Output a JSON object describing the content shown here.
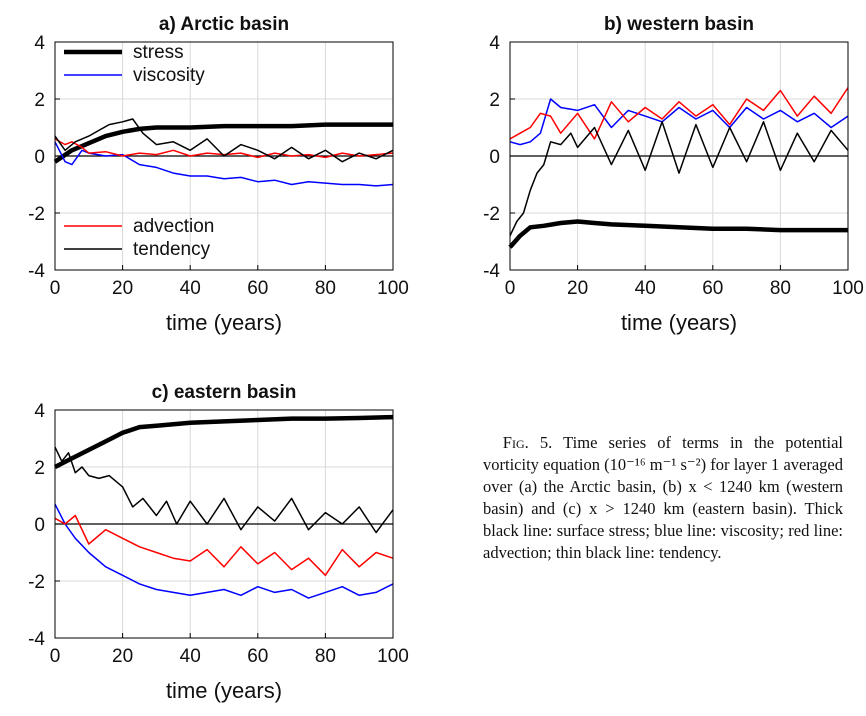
{
  "colors": {
    "stress": "#000000",
    "viscosity": "#0000ff",
    "advection": "#ff0000",
    "tendency": "#000000",
    "grid": "#d9d9d9"
  },
  "caption": {
    "fig_label": "Fig. 5.",
    "text": "Time series of terms in the potential vorticity equation (10⁻¹⁶ m⁻¹ s⁻²) for layer 1 averaged over (a) the Arctic basin, (b) x < 1240 km (western basin) and (c) x > 1240 km (eastern basin). Thick black line: surface stress; blue line: viscosity; red line: advection; thin black line: tendency."
  },
  "chart_data": [
    {
      "type": "line",
      "title": "a) Arctic basin",
      "xlabel": "time (years)",
      "ylabel": "",
      "xlim": [
        0,
        100
      ],
      "ylim": [
        -4,
        4
      ],
      "xticks": [
        "0",
        "20",
        "40",
        "60",
        "80",
        "100"
      ],
      "yticks": [
        "4",
        "2",
        "0",
        "-2",
        "-4"
      ],
      "grid": true,
      "legend": {
        "upper": [
          "stress",
          "viscosity"
        ],
        "lower": [
          "advection",
          "tendency"
        ],
        "placement": "top-left and bottom-left"
      },
      "series": [
        {
          "name": "stress",
          "style": "thick",
          "x": [
            0,
            5,
            10,
            15,
            20,
            25,
            30,
            40,
            50,
            60,
            70,
            80,
            90,
            100
          ],
          "values": [
            -0.2,
            0.2,
            0.45,
            0.7,
            0.85,
            0.95,
            1.0,
            1.0,
            1.05,
            1.05,
            1.05,
            1.1,
            1.1,
            1.1
          ]
        },
        {
          "name": "viscosity",
          "x": [
            0,
            3,
            5,
            8,
            10,
            15,
            20,
            25,
            30,
            35,
            40,
            45,
            50,
            55,
            60,
            65,
            70,
            75,
            80,
            85,
            90,
            95,
            100
          ],
          "values": [
            0.5,
            -0.2,
            -0.3,
            0.2,
            0.1,
            0.0,
            0.05,
            -0.3,
            -0.4,
            -0.6,
            -0.7,
            -0.7,
            -0.8,
            -0.75,
            -0.9,
            -0.85,
            -1.0,
            -0.9,
            -0.95,
            -1.0,
            -1.0,
            -1.05,
            -1.0
          ]
        },
        {
          "name": "advection",
          "x": [
            0,
            3,
            5,
            8,
            10,
            15,
            20,
            25,
            30,
            35,
            40,
            45,
            50,
            55,
            60,
            65,
            70,
            75,
            80,
            85,
            90,
            95,
            100
          ],
          "values": [
            0.6,
            0.4,
            0.5,
            0.3,
            0.1,
            0.15,
            0.0,
            0.1,
            0.05,
            0.2,
            0.0,
            0.1,
            0.05,
            0.1,
            -0.05,
            0.1,
            0.0,
            0.05,
            -0.05,
            0.1,
            0.0,
            0.05,
            0.1
          ]
        },
        {
          "name": "tendency",
          "x": [
            0,
            3,
            6,
            10,
            13,
            16,
            20,
            23,
            26,
            30,
            35,
            40,
            45,
            50,
            55,
            60,
            65,
            70,
            75,
            80,
            85,
            90,
            95,
            100
          ],
          "values": [
            0.7,
            0.2,
            0.5,
            0.7,
            0.9,
            1.1,
            1.2,
            1.3,
            0.8,
            0.4,
            0.5,
            0.2,
            0.6,
            0.0,
            0.4,
            0.2,
            -0.1,
            0.3,
            -0.1,
            0.2,
            -0.2,
            0.1,
            -0.1,
            0.2
          ]
        }
      ]
    },
    {
      "type": "line",
      "title": "b) western basin",
      "xlabel": "time (years)",
      "ylabel": "",
      "xlim": [
        0,
        100
      ],
      "ylim": [
        -4,
        4
      ],
      "xticks": [
        "0",
        "20",
        "40",
        "60",
        "80",
        "100"
      ],
      "yticks": [
        "4",
        "2",
        "0",
        "-2",
        "-4"
      ],
      "grid": true,
      "series": [
        {
          "name": "stress",
          "style": "thick",
          "x": [
            0,
            3,
            6,
            10,
            15,
            20,
            25,
            30,
            40,
            50,
            60,
            70,
            80,
            90,
            100
          ],
          "values": [
            -3.2,
            -2.8,
            -2.5,
            -2.45,
            -2.35,
            -2.3,
            -2.35,
            -2.4,
            -2.45,
            -2.5,
            -2.55,
            -2.55,
            -2.6,
            -2.6,
            -2.6
          ]
        },
        {
          "name": "viscosity",
          "x": [
            0,
            3,
            6,
            9,
            12,
            15,
            20,
            25,
            30,
            35,
            40,
            45,
            50,
            55,
            60,
            65,
            70,
            75,
            80,
            85,
            90,
            95,
            100
          ],
          "values": [
            0.5,
            0.4,
            0.5,
            0.8,
            2.0,
            1.7,
            1.6,
            1.8,
            1.0,
            1.6,
            1.4,
            1.2,
            1.7,
            1.3,
            1.6,
            1.0,
            1.7,
            1.3,
            1.6,
            1.2,
            1.5,
            1.0,
            1.4
          ]
        },
        {
          "name": "advection",
          "x": [
            0,
            3,
            6,
            9,
            12,
            15,
            20,
            25,
            30,
            35,
            40,
            45,
            50,
            55,
            60,
            65,
            70,
            75,
            80,
            85,
            90,
            95,
            100
          ],
          "values": [
            0.6,
            0.8,
            1.0,
            1.5,
            1.4,
            0.8,
            1.5,
            0.6,
            1.9,
            1.2,
            1.7,
            1.3,
            1.9,
            1.4,
            1.8,
            1.1,
            2.0,
            1.6,
            2.3,
            1.4,
            2.1,
            1.5,
            2.4
          ]
        },
        {
          "name": "tendency",
          "x": [
            0,
            2,
            4,
            6,
            8,
            10,
            12,
            15,
            18,
            20,
            25,
            30,
            35,
            40,
            45,
            50,
            55,
            60,
            65,
            70,
            75,
            80,
            85,
            90,
            95,
            100
          ],
          "values": [
            -2.8,
            -2.3,
            -2.0,
            -1.2,
            -0.6,
            -0.3,
            0.5,
            0.4,
            0.8,
            0.3,
            1.0,
            -0.3,
            0.9,
            -0.5,
            1.2,
            -0.6,
            1.1,
            -0.4,
            1.0,
            -0.2,
            1.2,
            -0.5,
            0.8,
            -0.2,
            0.9,
            0.2
          ]
        }
      ]
    },
    {
      "type": "line",
      "title": "c) eastern basin",
      "xlabel": "time (years)",
      "ylabel": "",
      "xlim": [
        0,
        100
      ],
      "ylim": [
        -4,
        4
      ],
      "xticks": [
        "0",
        "20",
        "40",
        "60",
        "80",
        "100"
      ],
      "yticks": [
        "4",
        "2",
        "0",
        "-2",
        "-4"
      ],
      "grid": true,
      "series": [
        {
          "name": "stress",
          "style": "thick",
          "x": [
            0,
            5,
            10,
            15,
            20,
            25,
            30,
            40,
            50,
            60,
            70,
            80,
            90,
            100
          ],
          "values": [
            2.0,
            2.3,
            2.6,
            2.9,
            3.2,
            3.4,
            3.45,
            3.55,
            3.6,
            3.65,
            3.7,
            3.7,
            3.72,
            3.75
          ]
        },
        {
          "name": "viscosity",
          "x": [
            0,
            3,
            6,
            10,
            15,
            20,
            25,
            30,
            35,
            40,
            45,
            50,
            55,
            60,
            65,
            70,
            75,
            80,
            85,
            90,
            95,
            100
          ],
          "values": [
            0.7,
            0.0,
            -0.5,
            -1.0,
            -1.5,
            -1.8,
            -2.1,
            -2.3,
            -2.4,
            -2.5,
            -2.4,
            -2.3,
            -2.5,
            -2.2,
            -2.4,
            -2.3,
            -2.6,
            -2.4,
            -2.2,
            -2.5,
            -2.4,
            -2.1
          ]
        },
        {
          "name": "advection",
          "x": [
            0,
            3,
            6,
            10,
            15,
            20,
            25,
            30,
            35,
            40,
            45,
            50,
            55,
            60,
            65,
            70,
            75,
            80,
            85,
            90,
            95,
            100
          ],
          "values": [
            0.2,
            0.0,
            0.3,
            -0.7,
            -0.2,
            -0.5,
            -0.8,
            -1.0,
            -1.2,
            -1.3,
            -0.9,
            -1.5,
            -0.8,
            -1.4,
            -1.0,
            -1.6,
            -1.2,
            -1.8,
            -0.9,
            -1.5,
            -1.0,
            -1.2
          ]
        },
        {
          "name": "tendency",
          "x": [
            0,
            2,
            4,
            6,
            8,
            10,
            13,
            16,
            20,
            23,
            26,
            30,
            33,
            36,
            40,
            45,
            50,
            55,
            60,
            65,
            70,
            75,
            80,
            85,
            90,
            95,
            100
          ],
          "values": [
            2.7,
            2.2,
            2.5,
            1.8,
            2.0,
            1.7,
            1.6,
            1.7,
            1.3,
            0.6,
            0.9,
            0.3,
            0.8,
            0.0,
            0.8,
            0.0,
            0.9,
            -0.2,
            0.6,
            0.1,
            0.9,
            -0.2,
            0.4,
            0.0,
            0.6,
            -0.3,
            0.5
          ]
        }
      ]
    }
  ]
}
